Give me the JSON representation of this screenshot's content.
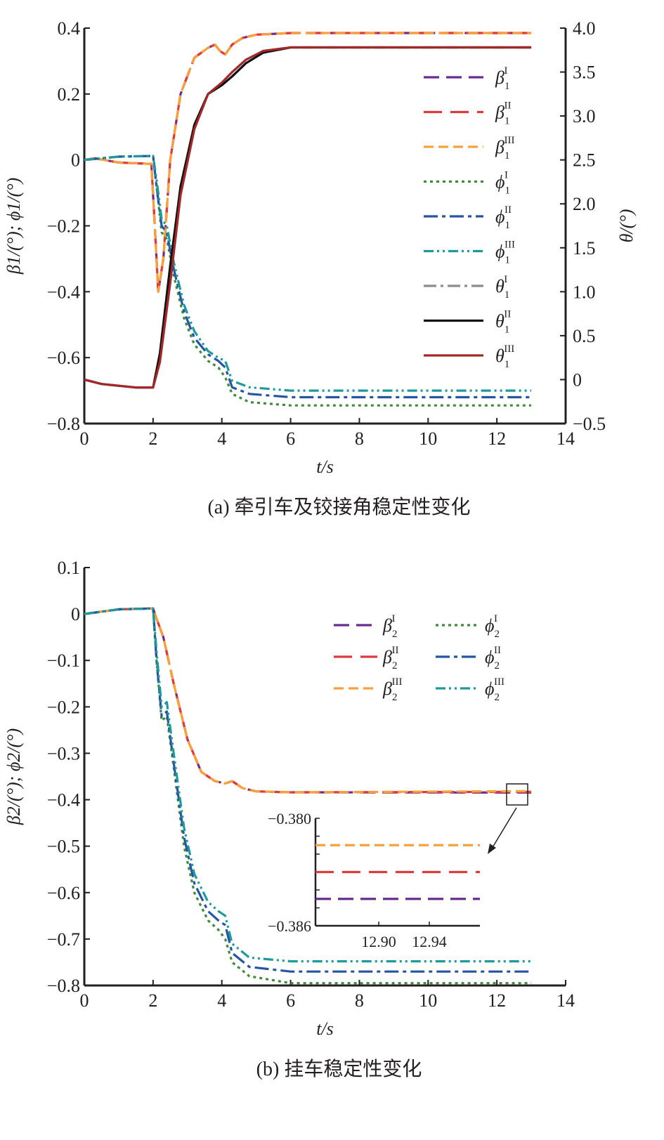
{
  "chart_data": [
    {
      "type": "line",
      "caption": "(a) 牵引车及铰接角稳定性变化",
      "xlabel": "t/s",
      "ylabel": "β1/(°); ϕ1/(°)",
      "y2label": "θ/(°)",
      "xlim": [
        0,
        14
      ],
      "ylim": [
        -0.8,
        0.4
      ],
      "y2lim": [
        -0.5,
        4.0
      ],
      "xticks": [
        "0",
        "2",
        "4",
        "6",
        "8",
        "10",
        "12",
        "14"
      ],
      "yticks": [
        "0.4",
        "0.2",
        "0",
        "−0.2",
        "−0.4",
        "−0.6",
        "−0.8"
      ],
      "y2ticks": [
        "4.0",
        "3.5",
        "3.0",
        "2.5",
        "2.0",
        "1.5",
        "1.0",
        "0.5",
        "0",
        "−0.5"
      ],
      "legend_position": "right",
      "series": [
        {
          "name": "β1 I",
          "sym": "β",
          "sub": "1",
          "sup": "I",
          "color": "#6a2c91",
          "dash": "22 10",
          "axis": "left",
          "x": [
            0,
            0.3,
            1,
            1.95,
            2.05,
            2.15,
            2.3,
            2.5,
            2.8,
            3.2,
            3.6,
            3.8,
            3.95,
            4.1,
            4.3,
            4.6,
            5,
            6,
            8,
            13
          ],
          "y": [
            0,
            0.005,
            -0.008,
            -0.012,
            -0.2,
            -0.4,
            -0.3,
            0.0,
            0.2,
            0.31,
            0.34,
            0.35,
            0.33,
            0.32,
            0.35,
            0.37,
            0.38,
            0.385,
            0.385,
            0.385
          ]
        },
        {
          "name": "β1 II",
          "sym": "β",
          "sub": "1",
          "sup": "II",
          "color": "#e03a3e",
          "dash": "26 12",
          "axis": "left",
          "x": [
            0,
            0.3,
            1,
            1.95,
            2.05,
            2.15,
            2.3,
            2.5,
            2.8,
            3.2,
            3.6,
            3.8,
            3.95,
            4.1,
            4.3,
            4.6,
            5,
            6,
            8,
            13
          ],
          "y": [
            0,
            0.005,
            -0.008,
            -0.012,
            -0.2,
            -0.4,
            -0.3,
            0.0,
            0.2,
            0.31,
            0.34,
            0.35,
            0.33,
            0.32,
            0.35,
            0.37,
            0.38,
            0.385,
            0.385,
            0.385
          ]
        },
        {
          "name": "β1 III",
          "sym": "β",
          "sub": "1",
          "sup": "III",
          "color": "#f7a13b",
          "dash": "14 7",
          "axis": "left",
          "x": [
            0,
            0.3,
            1,
            1.95,
            2.05,
            2.15,
            2.3,
            2.5,
            2.8,
            3.2,
            3.6,
            3.8,
            3.95,
            4.1,
            4.3,
            4.6,
            5,
            6,
            8,
            13
          ],
          "y": [
            0,
            0.005,
            -0.008,
            -0.012,
            -0.2,
            -0.4,
            -0.3,
            0.0,
            0.2,
            0.31,
            0.34,
            0.35,
            0.33,
            0.32,
            0.35,
            0.37,
            0.38,
            0.385,
            0.385,
            0.385
          ]
        },
        {
          "name": "ϕ1 I",
          "sym": "ϕ",
          "sub": "1",
          "sup": "I",
          "color": "#3f8a3c",
          "dash": "4 5",
          "axis": "left",
          "x": [
            0,
            1,
            2,
            2.1,
            2.25,
            2.4,
            2.6,
            2.9,
            3.2,
            3.6,
            3.9,
            4.1,
            4.3,
            4.8,
            6,
            13
          ],
          "y": [
            0,
            0.01,
            0.012,
            -0.08,
            -0.22,
            -0.24,
            -0.35,
            -0.48,
            -0.56,
            -0.61,
            -0.63,
            -0.66,
            -0.71,
            -0.735,
            -0.745,
            -0.745
          ]
        },
        {
          "name": "ϕ1 II",
          "sym": "ϕ",
          "sub": "1",
          "sup": "II",
          "color": "#2655a3",
          "dash": "20 6 5 6",
          "axis": "left",
          "x": [
            0,
            1,
            2,
            2.1,
            2.25,
            2.4,
            2.6,
            2.9,
            3.2,
            3.6,
            3.9,
            4.1,
            4.3,
            4.8,
            6,
            13
          ],
          "y": [
            0,
            0.01,
            0.012,
            -0.08,
            -0.2,
            -0.22,
            -0.33,
            -0.46,
            -0.54,
            -0.59,
            -0.61,
            -0.63,
            -0.69,
            -0.71,
            -0.72,
            -0.72
          ]
        },
        {
          "name": "ϕ1 III",
          "sym": "ϕ",
          "sub": "1",
          "sup": "III",
          "color": "#1d9a9a",
          "dash": "14 5 3 5 3 5",
          "axis": "left",
          "x": [
            0,
            1,
            2,
            2.1,
            2.25,
            2.4,
            2.6,
            2.9,
            3.2,
            3.6,
            3.9,
            4.1,
            4.3,
            4.8,
            6,
            13
          ],
          "y": [
            0,
            0.01,
            0.012,
            -0.06,
            -0.18,
            -0.2,
            -0.31,
            -0.44,
            -0.52,
            -0.58,
            -0.6,
            -0.61,
            -0.67,
            -0.69,
            -0.7,
            -0.7
          ]
        },
        {
          "name": "θ1 I",
          "sym": "θ",
          "sub": "1",
          "sup": "I",
          "color": "#8c8c8c",
          "dash": "18 6 4 6",
          "axis": "right",
          "x": [
            0,
            0.5,
            1.5,
            2.0,
            2.2,
            2.5,
            2.8,
            3.2,
            3.6,
            4.0,
            4.3,
            4.7,
            5.2,
            6,
            8,
            13
          ],
          "y": [
            0,
            -0.05,
            -0.09,
            -0.09,
            0.3,
            1.3,
            2.2,
            2.9,
            3.25,
            3.35,
            3.45,
            3.6,
            3.72,
            3.78,
            3.78,
            3.78
          ]
        },
        {
          "name": "θ1 II",
          "sym": "θ",
          "sub": "1",
          "sup": "II",
          "color": "#111111",
          "dash": "",
          "axis": "right",
          "x": [
            0,
            0.5,
            1.5,
            2.0,
            2.2,
            2.5,
            2.8,
            3.2,
            3.6,
            4.0,
            4.3,
            4.7,
            5.2,
            6,
            8,
            13
          ],
          "y": [
            0,
            -0.05,
            -0.09,
            -0.09,
            0.3,
            1.3,
            2.2,
            2.9,
            3.25,
            3.35,
            3.45,
            3.6,
            3.72,
            3.78,
            3.78,
            3.78
          ]
        },
        {
          "name": "θ1 III",
          "sym": "θ",
          "sub": "1",
          "sup": "III",
          "color": "#a3282a",
          "dash": "",
          "axis": "right",
          "x": [
            0,
            0.5,
            1.5,
            2.0,
            2.2,
            2.5,
            2.8,
            3.2,
            3.6,
            4.0,
            4.3,
            4.7,
            5.2,
            6,
            8,
            13
          ],
          "y": [
            0,
            -0.05,
            -0.09,
            -0.09,
            0.2,
            1.1,
            2.1,
            2.85,
            3.25,
            3.38,
            3.5,
            3.64,
            3.74,
            3.78,
            3.78,
            3.78
          ]
        }
      ]
    },
    {
      "type": "line",
      "caption": "(b) 挂车稳定性变化",
      "xlabel": "t/s",
      "ylabel": "β2/(°); ϕ2/(°)",
      "xlim": [
        0,
        14
      ],
      "ylim": [
        -0.8,
        0.1
      ],
      "xticks": [
        "0",
        "2",
        "4",
        "6",
        "8",
        "10",
        "12",
        "14"
      ],
      "yticks": [
        "0.1",
        "0",
        "−0.1",
        "−0.2",
        "−0.3",
        "−0.4",
        "−0.5",
        "−0.6",
        "−0.7",
        "−0.8"
      ],
      "legend_position": "top-right",
      "series": [
        {
          "name": "β2 I",
          "sym": "β",
          "sub": "2",
          "sup": "I",
          "color": "#6a2c91",
          "dash": "22 10",
          "x": [
            0,
            1,
            2,
            2.1,
            2.3,
            2.6,
            3.0,
            3.4,
            3.8,
            4.1,
            4.3,
            4.6,
            5,
            6,
            13
          ],
          "y": [
            0,
            0.01,
            0.012,
            -0.01,
            -0.05,
            -0.15,
            -0.27,
            -0.34,
            -0.36,
            -0.365,
            -0.36,
            -0.375,
            -0.382,
            -0.384,
            -0.3845
          ]
        },
        {
          "name": "β2 II",
          "sym": "β",
          "sub": "2",
          "sup": "II",
          "color": "#e03a3e",
          "dash": "26 12",
          "x": [
            0,
            1,
            2,
            2.1,
            2.3,
            2.6,
            3.0,
            3.4,
            3.8,
            4.1,
            4.3,
            4.6,
            5,
            6,
            13
          ],
          "y": [
            0,
            0.01,
            0.012,
            -0.01,
            -0.05,
            -0.15,
            -0.27,
            -0.34,
            -0.36,
            -0.365,
            -0.36,
            -0.375,
            -0.382,
            -0.384,
            -0.383
          ]
        },
        {
          "name": "β2 III",
          "sym": "β",
          "sub": "2",
          "sup": "III",
          "color": "#f7a13b",
          "dash": "14 7",
          "x": [
            0,
            1,
            2,
            2.1,
            2.3,
            2.6,
            3.0,
            3.4,
            3.8,
            4.1,
            4.3,
            4.6,
            5,
            6,
            13
          ],
          "y": [
            0,
            0.01,
            0.012,
            -0.01,
            -0.05,
            -0.15,
            -0.27,
            -0.34,
            -0.36,
            -0.365,
            -0.36,
            -0.375,
            -0.382,
            -0.384,
            -0.3815
          ]
        },
        {
          "name": "ϕ2 I",
          "sym": "ϕ",
          "sub": "2",
          "sup": "I",
          "color": "#3f8a3c",
          "dash": "4 5",
          "x": [
            0,
            1,
            2,
            2.1,
            2.25,
            2.4,
            2.6,
            2.9,
            3.2,
            3.6,
            3.9,
            4.1,
            4.3,
            4.8,
            6,
            13
          ],
          "y": [
            0,
            0.01,
            0.012,
            -0.1,
            -0.23,
            -0.22,
            -0.33,
            -0.5,
            -0.6,
            -0.66,
            -0.68,
            -0.7,
            -0.75,
            -0.78,
            -0.795,
            -0.795
          ]
        },
        {
          "name": "ϕ2 II",
          "sym": "ϕ",
          "sub": "2",
          "sup": "II",
          "color": "#2655a3",
          "dash": "20 6 5 6",
          "x": [
            0,
            1,
            2,
            2.1,
            2.25,
            2.4,
            2.6,
            2.9,
            3.2,
            3.6,
            3.9,
            4.1,
            4.3,
            4.8,
            6,
            13
          ],
          "y": [
            0,
            0.01,
            0.012,
            -0.1,
            -0.22,
            -0.21,
            -0.32,
            -0.48,
            -0.58,
            -0.64,
            -0.66,
            -0.67,
            -0.73,
            -0.76,
            -0.77,
            -0.77
          ]
        },
        {
          "name": "ϕ2 III",
          "sym": "ϕ",
          "sub": "2",
          "sup": "III",
          "color": "#1d9a9a",
          "dash": "14 5 3 5 3 5",
          "x": [
            0,
            1,
            2,
            2.1,
            2.25,
            2.4,
            2.6,
            2.9,
            3.2,
            3.6,
            3.9,
            4.1,
            4.3,
            4.8,
            6,
            13
          ],
          "y": [
            0,
            0.01,
            0.012,
            -0.08,
            -0.2,
            -0.19,
            -0.3,
            -0.46,
            -0.56,
            -0.62,
            -0.64,
            -0.65,
            -0.71,
            -0.74,
            -0.748,
            -0.748
          ]
        }
      ],
      "inset": {
        "xlim": [
          12.85,
          12.98
        ],
        "ylim": [
          -0.386,
          -0.38
        ],
        "xticks": [
          "12.90",
          "12.94"
        ],
        "xtick_values": [
          12.9,
          12.94
        ],
        "yticks": [
          "−0.380",
          "−0.386"
        ],
        "ytick_values": [
          -0.38,
          -0.386
        ],
        "lines": [
          {
            "name": "β2 III",
            "color": "#f7a13b",
            "y": -0.3815
          },
          {
            "name": "β2 II",
            "color": "#e03a3e",
            "y": -0.383
          },
          {
            "name": "β2 I",
            "color": "#6a2c91",
            "y": -0.3845
          }
        ]
      }
    }
  ]
}
